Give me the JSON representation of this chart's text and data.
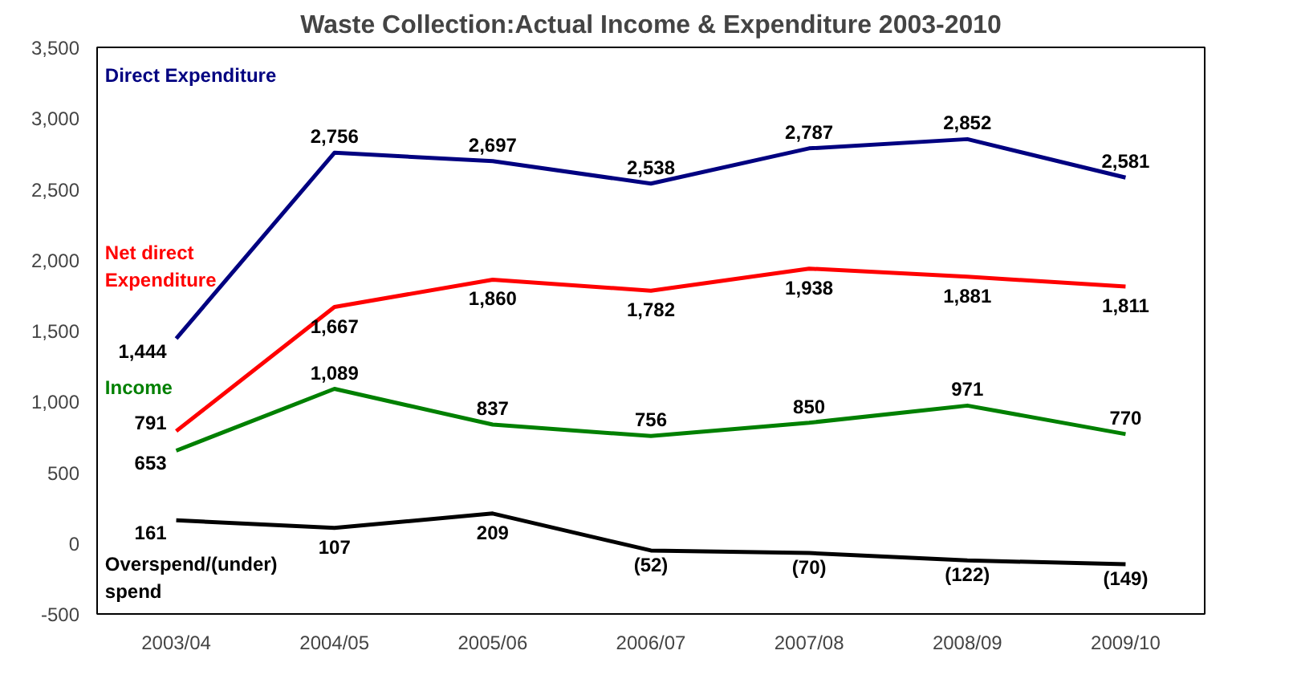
{
  "chart_data": {
    "type": "line",
    "title": "Waste Collection:Actual Income & Expenditure 2003-2010",
    "categories": [
      "2003/04",
      "2004/05",
      "2005/06",
      "2006/07",
      "2007/08",
      "2008/09",
      "2009/10"
    ],
    "series": [
      {
        "name": "Direct Expenditure",
        "color": "#000080",
        "values": [
          1444,
          2756,
          2697,
          2538,
          2787,
          2852,
          2581
        ],
        "value_labels": [
          "1,444",
          "2,756",
          "2,697",
          "2,538",
          "2,787",
          "2,852",
          "2,581"
        ]
      },
      {
        "name": "Net direct Expenditure",
        "color": "#ff0000",
        "values": [
          791,
          1667,
          1860,
          1782,
          1938,
          1881,
          1811
        ],
        "value_labels": [
          "791",
          "1,667",
          "1,860",
          "1,782",
          "1,938",
          "1,881",
          "1,811"
        ]
      },
      {
        "name": "Income",
        "color": "#008000",
        "values": [
          653,
          1089,
          837,
          756,
          850,
          971,
          770
        ],
        "value_labels": [
          "653",
          "1,089",
          "837",
          "756",
          "850",
          "971",
          "770"
        ]
      },
      {
        "name": "Overspend/(under) spend",
        "color": "#000000",
        "values": [
          161,
          107,
          209,
          -52,
          -70,
          -122,
          -149
        ],
        "value_labels": [
          "161",
          "107",
          "209",
          "(52)",
          "(70)",
          "(122)",
          "(149)"
        ]
      }
    ],
    "ylim": [
      -500,
      3500
    ],
    "yticks": [
      -500,
      0,
      500,
      {
        "value": 1000,
        "label": "1,000"
      },
      {
        "value": 1500,
        "label": "1,500"
      },
      {
        "value": 2000,
        "label": "2,000"
      },
      {
        "value": 2500,
        "label": "2,500"
      },
      {
        "value": 3000,
        "label": "3,000"
      },
      {
        "value": 3500,
        "label": "3,500"
      }
    ],
    "grid": false,
    "legend": false,
    "marker": "none",
    "line_style": "solid"
  }
}
